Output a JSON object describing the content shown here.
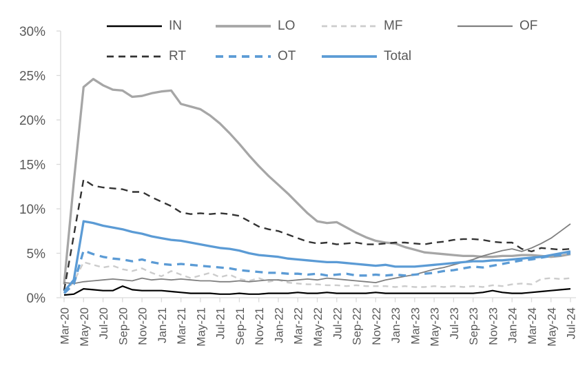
{
  "chart_data": {
    "type": "line",
    "title": "",
    "xlabel": "",
    "ylabel": "",
    "grid": "off",
    "legend_position": "top-overlay-two-rows",
    "legend_rows": [
      [
        "IN",
        "LO",
        "MF",
        "OF"
      ],
      [
        "RT",
        "OT",
        "Total"
      ]
    ],
    "y_axis": {
      "min": 0,
      "max": 30,
      "step": 5,
      "tick_labels": [
        "0%",
        "5%",
        "10%",
        "15%",
        "20%",
        "25%",
        "30%"
      ],
      "unit": "%"
    },
    "x_labels_shown_every": 2,
    "x_categories": [
      "Mar-20",
      "Apr-20",
      "May-20",
      "Jun-20",
      "Jul-20",
      "Aug-20",
      "Sep-20",
      "Oct-20",
      "Nov-20",
      "Dec-20",
      "Jan-21",
      "Feb-21",
      "Mar-21",
      "Apr-21",
      "May-21",
      "Jun-21",
      "Jul-21",
      "Aug-21",
      "Sep-21",
      "Oct-21",
      "Nov-21",
      "Dec-21",
      "Jan-22",
      "Feb-22",
      "Mar-22",
      "Apr-22",
      "May-22",
      "Jun-22",
      "Jul-22",
      "Aug-22",
      "Sep-22",
      "Oct-22",
      "Nov-22",
      "Dec-22",
      "Jan-23",
      "Feb-23",
      "Mar-23",
      "Apr-23",
      "May-23",
      "Jun-23",
      "Jul-23",
      "Aug-23",
      "Sep-23",
      "Oct-23",
      "Nov-23",
      "Dec-23",
      "Jan-24",
      "Feb-24",
      "Mar-24",
      "Apr-24",
      "May-24",
      "Jun-24",
      "Jul-24"
    ],
    "series": [
      {
        "name": "IN",
        "color": "#000000",
        "line_style": "solid",
        "values": [
          0.3,
          0.4,
          1.0,
          0.9,
          0.8,
          0.8,
          1.3,
          0.9,
          0.8,
          0.8,
          0.8,
          0.7,
          0.6,
          0.5,
          0.5,
          0.5,
          0.4,
          0.4,
          0.5,
          0.4,
          0.4,
          0.5,
          0.5,
          0.5,
          0.6,
          0.5,
          0.5,
          0.6,
          0.5,
          0.5,
          0.5,
          0.5,
          0.6,
          0.5,
          0.5,
          0.5,
          0.5,
          0.5,
          0.5,
          0.5,
          0.5,
          0.5,
          0.5,
          0.6,
          0.8,
          0.6,
          0.5,
          0.5,
          0.6,
          0.7,
          0.8,
          0.9,
          1.0
        ]
      },
      {
        "name": "LO",
        "color": "#a6a6a6",
        "line_style": "solid",
        "values": [
          1.5,
          13.0,
          23.7,
          24.6,
          23.9,
          23.4,
          23.3,
          22.6,
          22.7,
          23.0,
          23.2,
          23.3,
          21.8,
          21.5,
          21.2,
          20.5,
          19.6,
          18.5,
          17.3,
          16.0,
          14.8,
          13.7,
          12.7,
          11.7,
          10.6,
          9.5,
          8.6,
          8.4,
          8.5,
          7.9,
          7.3,
          6.8,
          6.4,
          6.2,
          6.1,
          5.7,
          5.4,
          5.1,
          5.0,
          4.9,
          4.8,
          4.7,
          4.7,
          4.6,
          4.6,
          4.7,
          4.7,
          4.8,
          4.8,
          4.7,
          4.6,
          4.7,
          4.9
        ]
      },
      {
        "name": "MF",
        "color": "#cccccc",
        "line_style": "dashed",
        "values": [
          0.5,
          1.8,
          4.0,
          3.7,
          3.4,
          3.6,
          3.2,
          3.0,
          3.3,
          2.8,
          2.4,
          3.0,
          2.6,
          2.2,
          2.5,
          2.8,
          2.3,
          2.6,
          2.1,
          1.9,
          2.2,
          1.8,
          2.0,
          1.7,
          1.6,
          1.5,
          1.5,
          1.4,
          1.4,
          1.3,
          1.4,
          1.3,
          1.3,
          1.3,
          1.2,
          1.3,
          1.2,
          1.2,
          1.3,
          1.2,
          1.3,
          1.2,
          1.3,
          1.2,
          1.4,
          1.3,
          1.5,
          1.6,
          1.5,
          2.1,
          2.2,
          2.1,
          2.2
        ]
      },
      {
        "name": "OF",
        "color": "#7f7f7f",
        "line_style": "solid",
        "values": [
          1.7,
          1.6,
          1.8,
          1.9,
          2.0,
          2.1,
          2.0,
          1.9,
          2.2,
          2.0,
          2.1,
          2.0,
          2.1,
          2.0,
          1.9,
          1.9,
          1.8,
          1.8,
          1.9,
          1.8,
          1.9,
          2.0,
          2.0,
          1.9,
          2.0,
          2.1,
          2.0,
          2.2,
          2.1,
          2.0,
          1.9,
          1.8,
          1.7,
          2.0,
          2.2,
          2.4,
          2.6,
          2.9,
          3.2,
          3.4,
          3.7,
          4.0,
          4.3,
          4.7,
          5.0,
          5.3,
          5.5,
          5.2,
          5.6,
          6.1,
          6.7,
          7.5,
          8.3
        ]
      },
      {
        "name": "RT",
        "color": "#333333",
        "line_style": "dashed",
        "values": [
          0.8,
          7.0,
          13.3,
          12.6,
          12.4,
          12.3,
          12.2,
          11.9,
          11.9,
          11.3,
          10.8,
          10.3,
          9.6,
          9.4,
          9.5,
          9.4,
          9.5,
          9.4,
          9.2,
          8.6,
          8.0,
          7.7,
          7.5,
          7.1,
          6.7,
          6.3,
          6.1,
          6.2,
          6.0,
          6.1,
          6.2,
          6.0,
          6.0,
          6.1,
          6.2,
          6.2,
          6.1,
          6.0,
          6.2,
          6.3,
          6.5,
          6.6,
          6.6,
          6.5,
          6.3,
          6.2,
          6.2,
          5.5,
          5.2,
          5.6,
          5.5,
          5.4,
          5.5
        ]
      },
      {
        "name": "OT",
        "color": "#5b9bd5",
        "line_style": "dashed",
        "values": [
          0.5,
          1.5,
          5.3,
          4.9,
          4.6,
          4.4,
          4.3,
          4.1,
          4.3,
          4.0,
          3.8,
          3.7,
          3.8,
          3.7,
          3.6,
          3.5,
          3.4,
          3.3,
          3.1,
          3.0,
          2.9,
          2.8,
          2.8,
          2.7,
          2.7,
          2.6,
          2.7,
          2.5,
          2.6,
          2.7,
          2.5,
          2.5,
          2.6,
          2.5,
          2.6,
          2.5,
          2.6,
          2.7,
          2.8,
          3.0,
          3.1,
          3.3,
          3.5,
          3.4,
          3.6,
          3.8,
          4.0,
          4.2,
          4.3,
          4.5,
          4.7,
          4.8,
          5.0
        ]
      },
      {
        "name": "Total",
        "color": "#5b9bd5",
        "line_style": "solid",
        "values": [
          0.7,
          2.0,
          8.6,
          8.4,
          8.1,
          7.9,
          7.7,
          7.4,
          7.2,
          6.9,
          6.7,
          6.5,
          6.4,
          6.2,
          6.0,
          5.8,
          5.6,
          5.5,
          5.3,
          5.0,
          4.8,
          4.7,
          4.6,
          4.4,
          4.3,
          4.2,
          4.1,
          4.0,
          4.0,
          3.9,
          3.8,
          3.7,
          3.6,
          3.7,
          3.5,
          3.5,
          3.5,
          3.6,
          3.7,
          3.8,
          3.9,
          4.0,
          4.1,
          4.1,
          4.2,
          4.2,
          4.3,
          4.4,
          4.5,
          4.6,
          4.8,
          5.0,
          5.2
        ]
      }
    ]
  },
  "colors": {
    "background": "#ffffff",
    "axis_line": "#d9d9d9",
    "tick_mark": "#d9d9d9",
    "label_text": "#595959"
  }
}
